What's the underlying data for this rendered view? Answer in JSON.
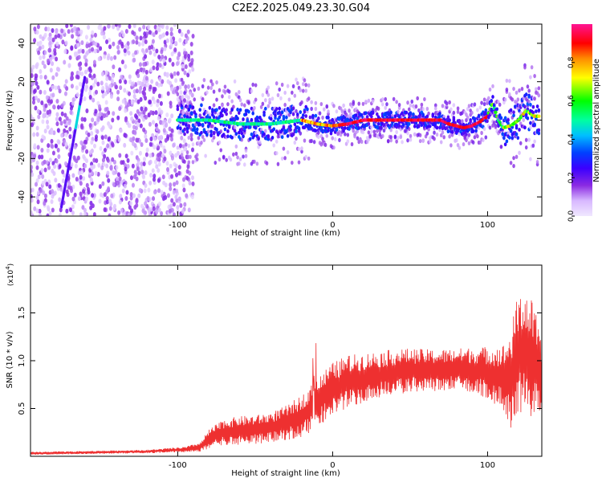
{
  "title": "C2E2.2025.049.23.30.G04",
  "chart_data": [
    {
      "type": "heatmap",
      "xlabel": "Height of straight line (km)",
      "ylabel": "Frequency (Hz)",
      "xlim": [
        -195,
        135
      ],
      "ylim": [
        -50,
        50
      ],
      "x_ticks": [
        -100,
        0,
        100
      ],
      "x_tick_labels": [
        "-100",
        "0",
        "100"
      ],
      "y_ticks": [
        -40,
        -20,
        0,
        20,
        40
      ],
      "y_tick_labels": [
        "-40",
        "-20",
        "0",
        "20",
        "40"
      ],
      "colorbar": {
        "label": "Normalized spectral amplitude",
        "range": [
          0,
          1
        ],
        "ticks": [
          0.0,
          0.2,
          0.4,
          0.6,
          0.8
        ],
        "tick_labels": [
          "0.0",
          "0.2",
          "0.4",
          "0.6",
          "0.8"
        ],
        "colors": [
          "#f0e8ff",
          "#8a2be2",
          "#0000ff",
          "#00bfff",
          "#00ff7f",
          "#00ff00",
          "#ffff00",
          "#ff8c00",
          "#ff0000",
          "#ff1493"
        ]
      },
      "ridge": {
        "x": [
          -100,
          -80,
          -60,
          -40,
          -20,
          -10,
          0,
          10,
          20,
          40,
          60,
          70,
          75,
          80,
          85,
          90,
          95,
          100,
          103,
          107,
          110,
          115,
          120,
          125,
          130
        ],
        "y": [
          0,
          0,
          -2,
          -2,
          0,
          -2,
          -3,
          -2,
          0,
          0,
          0,
          0,
          -2,
          -3,
          -4,
          -3,
          -1,
          2,
          9,
          0,
          -4,
          -3,
          0,
          5,
          2
        ]
      },
      "streak": {
        "x": [
          -175,
          -160
        ],
        "y": [
          -45,
          22
        ]
      },
      "noise_region": {
        "x": [
          -195,
          -90
        ],
        "freq": [
          -50,
          50
        ]
      }
    },
    {
      "type": "line",
      "xlabel": "Height of straight line (km)",
      "ylabel": "SNR (10 * v/v)",
      "y_multiplier": "(x10",
      "y_multiplier_exp": "4",
      "xlim": [
        -195,
        135
      ],
      "ylim": [
        0,
        20000
      ],
      "x_ticks": [
        -100,
        0,
        100
      ],
      "x_tick_labels": [
        "-100",
        "0",
        "100"
      ],
      "y_ticks": [
        5000,
        10000,
        15000
      ],
      "y_tick_labels": [
        "0.5",
        "1.0",
        "1.5"
      ],
      "series": [
        {
          "color": "#ee3030",
          "x": [
            -195,
            -160,
            -120,
            -95,
            -85,
            -80,
            -70,
            -60,
            -50,
            -40,
            -30,
            -20,
            -10,
            -5,
            0,
            10,
            20,
            30,
            40,
            50,
            60,
            70,
            80,
            90,
            100,
            110,
            115,
            118,
            122,
            126,
            130,
            135
          ],
          "y": [
            300,
            400,
            500,
            700,
            1000,
            1800,
            2500,
            2700,
            2800,
            3000,
            3500,
            4200,
            5500,
            6400,
            7000,
            7800,
            8200,
            8500,
            8800,
            9000,
            9000,
            9000,
            9100,
            9000,
            8800,
            8200,
            8000,
            10000,
            11000,
            10500,
            10000,
            7500
          ],
          "amplitude": [
            150,
            150,
            180,
            300,
            500,
            1000,
            1400,
            1500,
            1500,
            1600,
            1800,
            2200,
            2600,
            2700,
            2800,
            2800,
            2600,
            2500,
            2400,
            2300,
            2200,
            2200,
            2200,
            2400,
            2700,
            3500,
            5000,
            6000,
            6500,
            6500,
            6000,
            4000
          ]
        }
      ]
    }
  ]
}
